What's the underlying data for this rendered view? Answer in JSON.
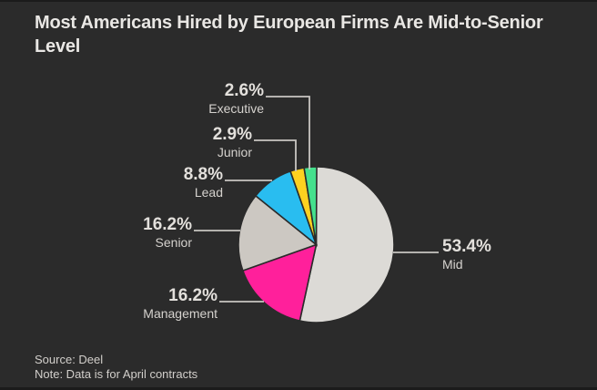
{
  "header": {
    "title": "Most Americans Hired by European Firms Are Mid-to-Senior Level",
    "title_lines": [
      "Most Americans Hired by European Firms Are Mid-to-Senior",
      "Level"
    ]
  },
  "footer": {
    "source": "Source: Deel",
    "note": "Note: Data is for April contracts"
  },
  "colors": {
    "background": "#2b2b2b",
    "title_text": "#e9e7e4",
    "pct_text": "#e3e0dc",
    "category_text": "#d5d2ce",
    "footer_text": "#d2cfcb",
    "leader_line": "#c9c6c2"
  },
  "chart_data": {
    "type": "pie",
    "title": "Most Americans Hired by European Firms Are Mid-to-Senior Level",
    "start_angle_deg": 0,
    "direction": "clockwise",
    "legend_position": "callout-labels",
    "slices": [
      {
        "label": "Mid",
        "value": 53.4,
        "pct_label": "53.4%",
        "color": "#dcdad6"
      },
      {
        "label": "Management",
        "value": 16.2,
        "pct_label": "16.2%",
        "color": "#ff209b"
      },
      {
        "label": "Senior",
        "value": 16.2,
        "pct_label": "16.2%",
        "color": "#ccc8c2"
      },
      {
        "label": "Lead",
        "value": 8.8,
        "pct_label": "8.8%",
        "color": "#29bdf0"
      },
      {
        "label": "Junior",
        "value": 2.9,
        "pct_label": "2.9%",
        "color": "#fdd120"
      },
      {
        "label": "Executive",
        "value": 2.6,
        "pct_label": "2.6%",
        "color": "#45e08d"
      }
    ]
  }
}
